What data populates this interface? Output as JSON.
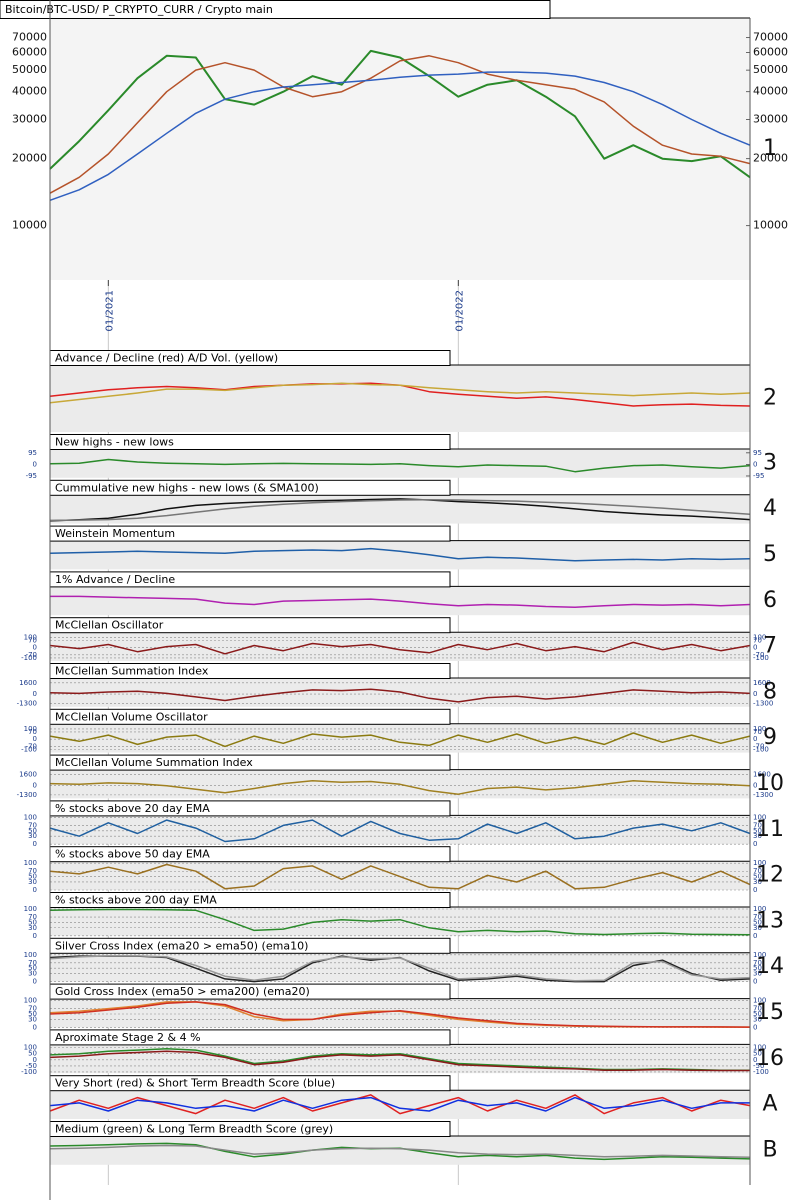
{
  "chart_data": [
    {
      "type": "line",
      "title": "Bitcoin/BTC-USD/ P_CRYPTO_CURR / Crypto main",
      "label": "1",
      "log_scale": true,
      "grid": false,
      "categories": [
        null,
        null,
        "01/2021",
        null,
        null,
        null,
        null,
        null,
        null,
        null,
        null,
        null,
        null,
        null,
        "01/2022",
        null,
        null,
        null,
        null,
        null,
        null,
        null,
        null,
        null,
        null
      ],
      "ylim": [
        5700,
        84000
      ],
      "yticks": [
        10000,
        20000,
        30000,
        40000,
        50000,
        60000,
        70000
      ],
      "series": [
        {
          "color": "#2a8a2a",
          "values": [
            18000,
            24000,
            33000,
            46000,
            58000,
            57000,
            37000,
            35000,
            40000,
            47000,
            43000,
            61000,
            57000,
            47000,
            38000,
            43000,
            45000,
            38000,
            31000,
            20000,
            23000,
            20000,
            19500,
            20500,
            16500
          ]
        },
        {
          "color": "#b5532a",
          "values": [
            14000,
            16500,
            21000,
            29000,
            40000,
            50000,
            54000,
            50000,
            42000,
            38000,
            40000,
            46000,
            55000,
            58000,
            54000,
            48000,
            45000,
            43000,
            41000,
            36000,
            28000,
            23000,
            21000,
            20500,
            19000
          ]
        },
        {
          "color": "#3060c0",
          "values": [
            13000,
            14500,
            17000,
            21000,
            26000,
            32000,
            37000,
            40000,
            42000,
            43000,
            44000,
            45000,
            46500,
            47500,
            48000,
            49000,
            49000,
            48500,
            47000,
            44000,
            40000,
            35000,
            30000,
            26000,
            23000
          ]
        }
      ]
    },
    {
      "type": "line",
      "title": "Advance / Decline (red) A/D Vol. (yellow)",
      "label": "2",
      "grid": false,
      "ylim": [
        0,
        100
      ],
      "series": [
        {
          "color": "#e02020",
          "values": [
            55,
            60,
            65,
            68,
            70,
            68,
            65,
            70,
            72,
            74,
            74,
            75,
            72,
            62,
            58,
            55,
            52,
            54,
            50,
            45,
            40,
            42,
            43,
            41,
            40
          ]
        },
        {
          "color": "#c8a838",
          "values": [
            45,
            50,
            55,
            60,
            66,
            66,
            64,
            68,
            72,
            73,
            75,
            73,
            72,
            68,
            65,
            62,
            60,
            62,
            60,
            58,
            56,
            58,
            60,
            58,
            60
          ]
        }
      ]
    },
    {
      "type": "line",
      "title": "New highs - new lows",
      "label": "3",
      "grid": false,
      "ylim": [
        -110,
        110
      ],
      "yticks": [
        95,
        0,
        -95
      ],
      "series": [
        {
          "color": "#2a8a2a",
          "values": [
            5,
            10,
            40,
            20,
            10,
            5,
            0,
            5,
            8,
            5,
            3,
            0,
            5,
            -10,
            -20,
            -5,
            -10,
            -15,
            -60,
            -30,
            -10,
            -5,
            -20,
            -30,
            -10
          ]
        }
      ]
    },
    {
      "type": "line",
      "title": "Cummulative new highs - new lows (& SMA100)",
      "label": "4",
      "grid": false,
      "ylim": [
        0,
        100
      ],
      "series": [
        {
          "color": "#111111",
          "values": [
            10,
            14,
            20,
            35,
            55,
            68,
            75,
            80,
            83,
            85,
            87,
            90,
            92,
            88,
            82,
            78,
            72,
            65,
            55,
            45,
            38,
            32,
            28,
            22,
            15
          ]
        },
        {
          "color": "#777777",
          "values": [
            12,
            13,
            15,
            20,
            30,
            42,
            55,
            65,
            72,
            78,
            82,
            85,
            88,
            89,
            88,
            86,
            84,
            80,
            76,
            70,
            64,
            58,
            50,
            42,
            35
          ]
        }
      ]
    },
    {
      "type": "line",
      "title": "Weinstein Momentum",
      "label": "5",
      "grid": false,
      "ylim": [
        -100,
        100
      ],
      "series": [
        {
          "color": "#1f5fa8",
          "values": [
            20,
            25,
            30,
            35,
            30,
            25,
            20,
            35,
            40,
            45,
            40,
            55,
            35,
            10,
            -20,
            -10,
            -15,
            -25,
            -35,
            -30,
            -25,
            -30,
            -20,
            -25,
            -20
          ]
        }
      ]
    },
    {
      "type": "line",
      "title": "1% Advance / Decline",
      "label": "6",
      "grid": false,
      "ylim": [
        -100,
        100
      ],
      "series": [
        {
          "color": "#b020b0",
          "values": [
            40,
            40,
            35,
            30,
            25,
            20,
            -10,
            -20,
            5,
            10,
            15,
            20,
            5,
            -15,
            -30,
            -20,
            -25,
            -35,
            -40,
            -30,
            -20,
            -25,
            -20,
            -30,
            -20
          ]
        }
      ]
    },
    {
      "type": "line",
      "title": "McClellan Oscillator",
      "label": "7",
      "grid": true,
      "ylim": [
        -130,
        130
      ],
      "yticks": [
        100,
        70,
        0,
        -70,
        -100
      ],
      "series": [
        {
          "color": "#8b1a1a",
          "values": [
            20,
            -10,
            30,
            -40,
            10,
            30,
            -60,
            20,
            -30,
            40,
            10,
            30,
            -20,
            -50,
            30,
            -20,
            40,
            -30,
            10,
            -40,
            50,
            -20,
            30,
            -30,
            20
          ]
        }
      ]
    },
    {
      "type": "line",
      "title": "McClellan Summation Index",
      "label": "8",
      "grid": true,
      "ylim": [
        -1800,
        2000
      ],
      "yticks": [
        1600,
        0,
        -1300
      ],
      "series": [
        {
          "color": "#8b1a1a",
          "values": [
            200,
            100,
            300,
            400,
            100,
            -400,
            -900,
            -300,
            200,
            600,
            500,
            700,
            300,
            -600,
            -1100,
            -500,
            -300,
            -700,
            -400,
            100,
            600,
            400,
            200,
            300,
            100
          ]
        }
      ]
    },
    {
      "type": "line",
      "title": "McClellan Volume Oscillator",
      "label": "9",
      "grid": true,
      "ylim": [
        -130,
        130
      ],
      "yticks": [
        100,
        70,
        0,
        -70,
        -100
      ],
      "series": [
        {
          "color": "#8b7a10",
          "values": [
            30,
            -20,
            40,
            -50,
            20,
            40,
            -70,
            30,
            -40,
            50,
            20,
            40,
            -30,
            -60,
            40,
            -30,
            50,
            -40,
            20,
            -50,
            60,
            -30,
            40,
            -40,
            30
          ]
        }
      ]
    },
    {
      "type": "line",
      "title": "McClellan Volume Summation Index",
      "label": "10",
      "grid": true,
      "ylim": [
        -1800,
        2000
      ],
      "yticks": [
        1600,
        0,
        -1300
      ],
      "series": [
        {
          "color": "#a08020",
          "values": [
            300,
            200,
            400,
            300,
            0,
            -500,
            -1000,
            -400,
            300,
            700,
            500,
            600,
            200,
            -700,
            -1200,
            -400,
            -200,
            -600,
            -300,
            200,
            700,
            500,
            300,
            200,
            0
          ]
        }
      ]
    },
    {
      "type": "line",
      "title": "% stocks above 20 day EMA",
      "label": "11",
      "grid": true,
      "ylim": [
        0,
        100
      ],
      "yticks": [
        100,
        70,
        50,
        30,
        0
      ],
      "series": [
        {
          "color": "#2060a0",
          "values": [
            60,
            30,
            80,
            40,
            90,
            60,
            10,
            20,
            70,
            90,
            30,
            85,
            40,
            15,
            20,
            75,
            40,
            80,
            20,
            30,
            60,
            75,
            50,
            80,
            40
          ]
        }
      ]
    },
    {
      "type": "line",
      "title": "% stocks above 50 day EMA",
      "label": "12",
      "grid": true,
      "ylim": [
        0,
        100
      ],
      "yticks": [
        100,
        70,
        50,
        30,
        0
      ],
      "series": [
        {
          "color": "#9a7020",
          "values": [
            70,
            60,
            85,
            60,
            95,
            70,
            5,
            15,
            80,
            90,
            40,
            90,
            50,
            10,
            5,
            55,
            30,
            70,
            5,
            10,
            40,
            65,
            30,
            70,
            20
          ]
        }
      ]
    },
    {
      "type": "line",
      "title": "% stocks above 200 day EMA",
      "label": "13",
      "grid": true,
      "ylim": [
        0,
        100
      ],
      "yticks": [
        100,
        70,
        50,
        30,
        0
      ],
      "series": [
        {
          "color": "#2a8a2a",
          "values": [
            95,
            97,
            98,
            98,
            97,
            95,
            60,
            20,
            25,
            50,
            60,
            55,
            60,
            30,
            15,
            20,
            15,
            18,
            8,
            5,
            8,
            10,
            6,
            5,
            4
          ]
        }
      ]
    },
    {
      "type": "line",
      "title": "Silver Cross Index (ema20 > ema50) (ema10)",
      "label": "14",
      "grid": true,
      "ylim": [
        0,
        100
      ],
      "yticks": [
        100,
        70,
        50,
        30,
        0
      ],
      "series": [
        {
          "color": "#222222",
          "values": [
            90,
            95,
            95,
            95,
            90,
            50,
            10,
            0,
            10,
            70,
            95,
            80,
            90,
            40,
            5,
            10,
            20,
            5,
            0,
            0,
            60,
            80,
            30,
            5,
            10
          ]
        },
        {
          "color": "#999999",
          "values": [
            85,
            92,
            96,
            96,
            92,
            60,
            20,
            5,
            20,
            75,
            92,
            85,
            88,
            50,
            10,
            15,
            25,
            10,
            3,
            5,
            70,
            75,
            25,
            10,
            15
          ]
        }
      ]
    },
    {
      "type": "line",
      "title": "Gold Cross Index (ema50 > ema200) (ema20)",
      "label": "15",
      "grid": true,
      "ylim": [
        0,
        100
      ],
      "yticks": [
        100,
        70,
        50,
        30,
        0
      ],
      "series": [
        {
          "color": "#e08030",
          "values": [
            55,
            60,
            70,
            80,
            95,
            95,
            80,
            40,
            25,
            30,
            50,
            60,
            60,
            45,
            30,
            20,
            12,
            8,
            5,
            3,
            2,
            2,
            2,
            1,
            1
          ]
        },
        {
          "color": "#d03020",
          "values": [
            50,
            55,
            65,
            75,
            90,
            95,
            85,
            50,
            30,
            30,
            45,
            55,
            62,
            50,
            35,
            25,
            15,
            10,
            6,
            4,
            3,
            2,
            2,
            2,
            1
          ]
        }
      ]
    },
    {
      "type": "line",
      "title": "Aproximate Stage 2 & 4 %",
      "label": "16",
      "grid": true,
      "ylim": [
        -110,
        110
      ],
      "yticks": [
        100,
        50,
        0,
        -50,
        -100
      ],
      "series": [
        {
          "color": "#2a8a2a",
          "values": [
            40,
            50,
            70,
            80,
            90,
            80,
            30,
            -30,
            -10,
            30,
            50,
            40,
            50,
            10,
            -30,
            -40,
            -50,
            -60,
            -70,
            -80,
            -80,
            -75,
            -80,
            -85,
            -85
          ]
        },
        {
          "color": "#8b1a1a",
          "values": [
            20,
            30,
            50,
            60,
            70,
            60,
            20,
            -40,
            -20,
            20,
            40,
            30,
            40,
            0,
            -40,
            -50,
            -60,
            -70,
            -75,
            -85,
            -85,
            -80,
            -85,
            -88,
            -88
          ]
        }
      ]
    },
    {
      "type": "line",
      "title": "Very Short (red) & Short Term Breadth Score (blue)",
      "label": "A",
      "grid": false,
      "ylim": [
        0,
        100
      ],
      "series": [
        {
          "color": "#e02020",
          "values": [
            30,
            70,
            40,
            80,
            50,
            20,
            70,
            40,
            80,
            30,
            60,
            90,
            20,
            50,
            80,
            30,
            70,
            40,
            90,
            20,
            60,
            80,
            30,
            70,
            50
          ]
        },
        {
          "color": "#1030e0",
          "values": [
            50,
            60,
            30,
            70,
            60,
            40,
            50,
            30,
            70,
            40,
            70,
            80,
            40,
            30,
            70,
            50,
            60,
            30,
            80,
            40,
            50,
            70,
            40,
            60,
            60
          ]
        }
      ]
    },
    {
      "type": "line",
      "title": "Medium (green) & Long Term Breadth Score (grey)",
      "label": "B",
      "grid": false,
      "ylim": [
        0,
        100
      ],
      "series": [
        {
          "color": "#2a8a2a",
          "values": [
            70,
            72,
            75,
            78,
            80,
            75,
            50,
            30,
            40,
            55,
            65,
            60,
            62,
            45,
            30,
            35,
            30,
            35,
            25,
            20,
            25,
            30,
            28,
            25,
            22
          ]
        },
        {
          "color": "#888888",
          "values": [
            60,
            62,
            65,
            70,
            72,
            70,
            55,
            40,
            45,
            55,
            60,
            62,
            60,
            55,
            45,
            40,
            38,
            40,
            35,
            30,
            32,
            35,
            33,
            30,
            28
          ]
        }
      ]
    }
  ]
}
